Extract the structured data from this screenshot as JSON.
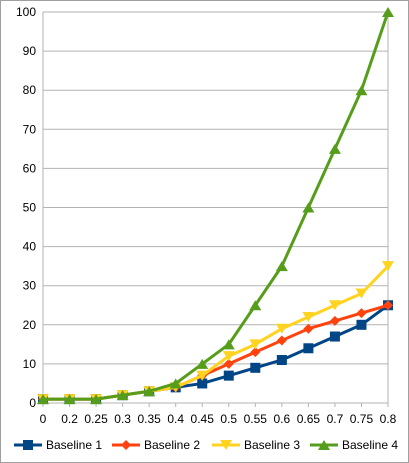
{
  "chart_data": {
    "type": "line",
    "title": "",
    "xlabel": "",
    "ylabel": "",
    "x": [
      "0",
      "0.2",
      "0.25",
      "0.3",
      "0.35",
      "0.4",
      "0.45",
      "0.5",
      "0.55",
      "0.6",
      "0.65",
      "0.7",
      "0.75",
      "0.8"
    ],
    "y_ticks": [
      "0",
      "10",
      "20",
      "30",
      "40",
      "50",
      "60",
      "70",
      "80",
      "90",
      "100"
    ],
    "ylim": [
      0,
      100
    ],
    "grid": "horizontal",
    "legend_position": "bottom",
    "series": [
      {
        "name": "Baseline 1",
        "color": "#004586",
        "marker": "square",
        "values": [
          1,
          1,
          1,
          2,
          3,
          4,
          5,
          7,
          9,
          11,
          14,
          17,
          20,
          25
        ]
      },
      {
        "name": "Baseline 2",
        "color": "#ff420e",
        "marker": "diamond",
        "values": [
          1,
          1,
          1,
          2,
          3,
          4,
          7,
          10,
          13,
          16,
          19,
          21,
          23,
          25
        ]
      },
      {
        "name": "Baseline 3",
        "color": "#ffd320",
        "marker": "triangle-down",
        "values": [
          1,
          1,
          1,
          2,
          3,
          4,
          7,
          12,
          15,
          19,
          22,
          25,
          28,
          35
        ]
      },
      {
        "name": "Baseline 4",
        "color": "#579d1c",
        "marker": "triangle-up",
        "values": [
          1,
          1,
          1,
          2,
          3,
          5,
          10,
          15,
          25,
          35,
          50,
          65,
          80,
          100
        ]
      }
    ]
  }
}
